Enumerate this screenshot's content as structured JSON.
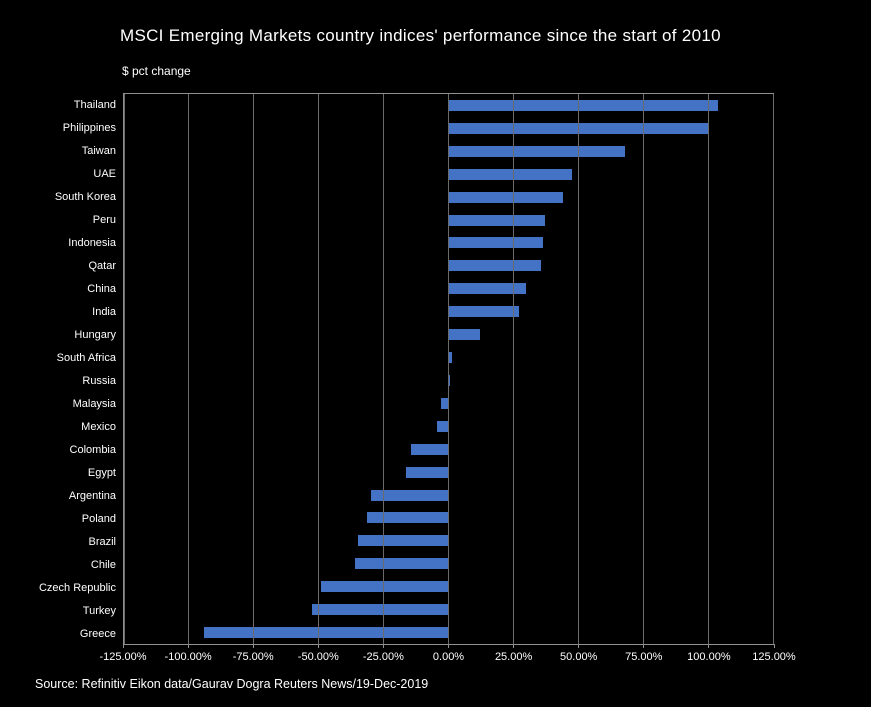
{
  "title": "MSCI Emerging Markets country indices' performance since the start of 2010",
  "subtitle": "$ pct change",
  "source": "Source: Refinitiv Eikon data/Gaurav Dogra Reuters News/19-Dec-2019",
  "colors": {
    "background": "#000000",
    "bar": "#4472C4",
    "text": "#FFFFFF",
    "gridline": "#6A6A6A",
    "plot_border": "#909090"
  },
  "chart_data": {
    "type": "bar",
    "orientation": "horizontal",
    "title": "MSCI Emerging Markets country indices' performance since the start of 2010",
    "xlabel": "$ pct change",
    "ylabel": "",
    "grid": true,
    "legend": false,
    "xlim": [
      -125,
      125
    ],
    "x_tick_values": [
      -125,
      -100,
      -75,
      -50,
      -25,
      0,
      25,
      50,
      75,
      100,
      125
    ],
    "x_tick_labels": [
      "-125.00%",
      "-100.00%",
      "-75.00%",
      "-50.00%",
      "-25.00%",
      "0.00%",
      "25.00%",
      "50.00%",
      "75.00%",
      "100.00%",
      "125.00%"
    ],
    "categories": [
      "Thailand",
      "Philippines",
      "Taiwan",
      "UAE",
      "South Korea",
      "Peru",
      "Indonesia",
      "Qatar",
      "China",
      "India",
      "Hungary",
      "South Africa",
      "Russia",
      "Malaysia",
      "Mexico",
      "Colombia",
      "Egypt",
      "Argentina",
      "Poland",
      "Brazil",
      "Chile",
      "Czech Republic",
      "Turkey",
      "Greece"
    ],
    "values": [
      104,
      100,
      68,
      47.5,
      44,
      37,
      36.5,
      35.5,
      30,
      27,
      12,
      1.5,
      0.5,
      -3,
      -4.5,
      -14.5,
      -16.5,
      -30,
      -31.5,
      -35,
      -36,
      -49,
      -52.5,
      -94
    ]
  }
}
